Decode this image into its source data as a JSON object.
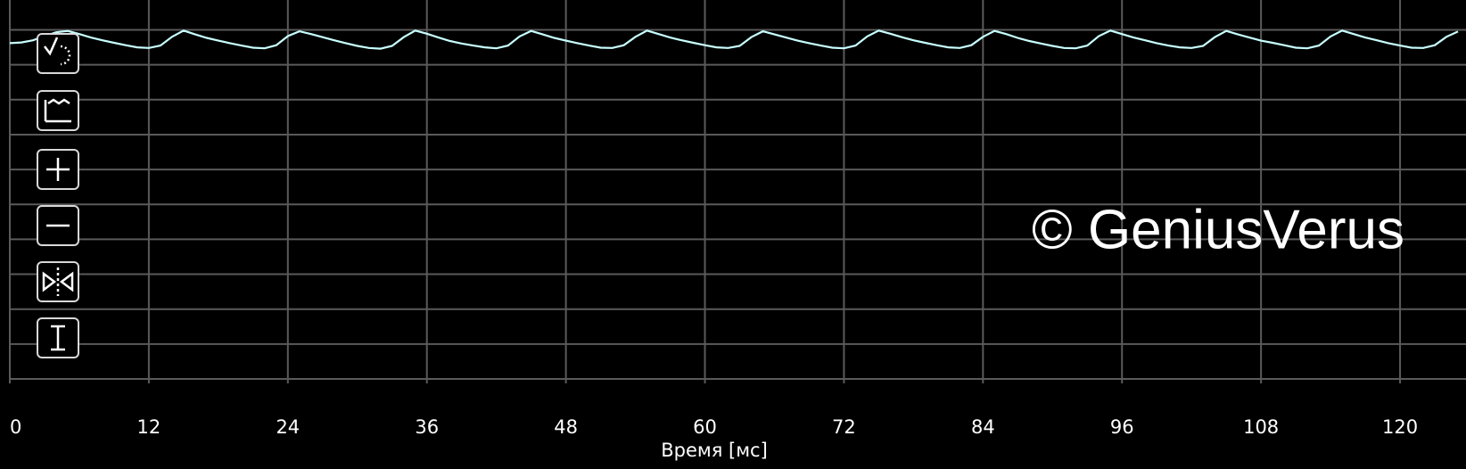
{
  "chart_data": {
    "type": "line",
    "x": [
      0,
      1,
      2,
      3,
      4,
      5,
      6,
      7,
      8,
      9,
      10,
      11,
      12,
      13,
      14,
      15,
      16,
      17,
      18,
      19,
      20,
      21,
      22,
      23,
      24,
      25,
      26,
      27,
      28,
      29,
      30,
      31,
      32,
      33,
      34,
      35,
      36,
      37,
      38,
      39,
      40,
      41,
      42,
      43,
      44,
      45,
      46,
      47,
      48,
      49,
      50,
      51,
      52,
      53,
      54,
      55,
      56,
      57,
      58,
      59,
      60,
      61,
      62,
      63,
      64,
      65,
      66,
      67,
      68,
      69,
      70,
      71,
      72,
      73,
      74,
      75,
      76,
      77,
      78,
      79,
      80,
      81,
      82,
      83,
      84,
      85,
      86,
      87,
      88,
      89,
      90,
      91,
      92,
      93,
      94,
      95,
      96,
      97,
      98,
      99,
      100,
      101,
      102,
      103,
      104,
      105,
      106,
      107,
      108,
      109,
      110,
      111,
      112,
      113,
      114,
      115,
      116,
      117,
      118,
      119,
      120,
      121,
      122,
      123,
      124,
      125
    ],
    "series": [
      {
        "color": "#c8ffff",
        "values": [
          9.62,
          9.64,
          9.7,
          9.82,
          9.93,
          9.97,
          9.88,
          9.78,
          9.7,
          9.63,
          9.56,
          9.5,
          9.48,
          9.55,
          9.8,
          9.98,
          9.87,
          9.77,
          9.69,
          9.62,
          9.55,
          9.49,
          9.47,
          9.56,
          9.82,
          9.96,
          9.88,
          9.79,
          9.7,
          9.62,
          9.54,
          9.48,
          9.46,
          9.54,
          9.79,
          9.98,
          9.89,
          9.78,
          9.68,
          9.61,
          9.55,
          9.5,
          9.47,
          9.55,
          9.81,
          9.97,
          9.87,
          9.77,
          9.69,
          9.62,
          9.55,
          9.49,
          9.48,
          9.56,
          9.8,
          9.98,
          9.88,
          9.78,
          9.7,
          9.63,
          9.56,
          9.5,
          9.48,
          9.54,
          9.79,
          9.96,
          9.87,
          9.78,
          9.69,
          9.62,
          9.55,
          9.49,
          9.47,
          9.55,
          9.81,
          9.98,
          9.89,
          9.79,
          9.7,
          9.63,
          9.56,
          9.5,
          9.48,
          9.56,
          9.8,
          9.97,
          9.88,
          9.77,
          9.68,
          9.61,
          9.54,
          9.48,
          9.47,
          9.55,
          9.82,
          9.98,
          9.88,
          9.78,
          9.7,
          9.62,
          9.55,
          9.5,
          9.48,
          9.54,
          9.79,
          9.97,
          9.87,
          9.78,
          9.69,
          9.63,
          9.56,
          9.49,
          9.47,
          9.55,
          9.81,
          9.98,
          9.88,
          9.78,
          9.7,
          9.62,
          9.55,
          9.49,
          9.48,
          9.56,
          9.8,
          9.95
        ]
      }
    ],
    "xlim": [
      0,
      125
    ],
    "xticks": [
      0,
      12,
      24,
      36,
      48,
      60,
      72,
      84,
      96,
      108,
      120
    ],
    "ylim": [
      0,
      10.6
    ],
    "ygrid": [
      0,
      1,
      2,
      3,
      4,
      5,
      6,
      7,
      8,
      9,
      10
    ],
    "xlabel": "Время [мс]",
    "watermark": "© GeniusVerus"
  }
}
